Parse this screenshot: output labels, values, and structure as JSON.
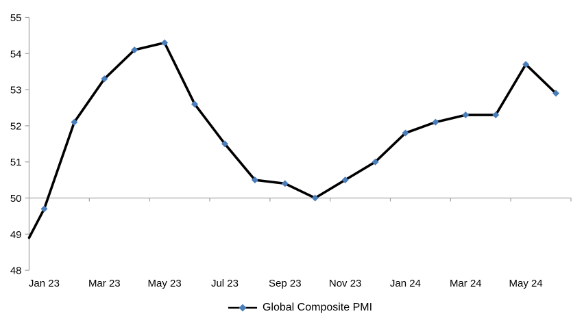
{
  "chart_data": {
    "type": "line",
    "title": "",
    "xlabel": "",
    "ylabel": "",
    "x": [
      "Jan 23",
      "Feb 23",
      "Mar 23",
      "Apr 23",
      "May 23",
      "Jun 23",
      "Jul 23",
      "Aug 23",
      "Sep 23",
      "Oct 23",
      "Nov 23",
      "Dec 23",
      "Jan 24",
      "Feb 24",
      "Mar 24",
      "Apr 24",
      "May 24",
      "Jun 24"
    ],
    "x_axis_visible_labels": [
      "Jan 23",
      "Mar 23",
      "May 23",
      "Jul 23",
      "Sep 23",
      "Nov 23",
      "Jan 24",
      "Mar 24",
      "May 24"
    ],
    "x_label_interval": 2,
    "series": [
      {
        "name": "Global Composite PMI",
        "values": [
          49.7,
          52.1,
          53.3,
          54.1,
          54.3,
          52.6,
          51.5,
          50.5,
          50.4,
          50.0,
          50.5,
          51.0,
          51.8,
          52.1,
          52.3,
          52.3,
          53.7,
          52.9
        ],
        "marker": "diamond",
        "marker_color": "#4a7ebb",
        "line_color": "#000000"
      }
    ],
    "line_enters_left_edge_at": 48.9,
    "y_ticks": [
      48,
      49,
      50,
      51,
      52,
      53,
      54,
      55
    ],
    "ylim": [
      48,
      55
    ],
    "baseline_value": 50,
    "grid": "off",
    "category_axis_at_value": 50,
    "axis_color": "#a6a6a6",
    "text_color": "#000000",
    "legend_position": "bottom"
  },
  "legend": {
    "label": "Global Composite PMI"
  }
}
